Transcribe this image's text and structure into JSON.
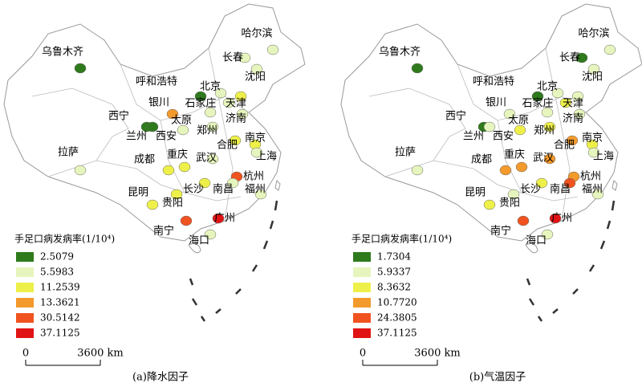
{
  "panels": [
    {
      "caption": "(a)降水因子",
      "legend": {
        "title": "手足口病发病率(1/10⁴)",
        "items": [
          {
            "label": "2.5079",
            "color": "#2f7a1c"
          },
          {
            "label": "5.5983",
            "color": "#e6f5bd"
          },
          {
            "label": "11.2539",
            "color": "#eef04a"
          },
          {
            "label": "13.3621",
            "color": "#f39a2c"
          },
          {
            "label": "30.5142",
            "color": "#f0531f"
          },
          {
            "label": "37.1125",
            "color": "#e01414"
          }
        ]
      },
      "scale": [
        "0",
        "3600 km"
      ],
      "cities": [
        "乌鲁木齐",
        "哈尔滨",
        "长春",
        "沈阳",
        "呼和浩特",
        "北京",
        "银川",
        "石家庄",
        "天津",
        "太原",
        "济南",
        "西宁",
        "西安",
        "郑州",
        "兰州",
        "合肥",
        "南京",
        "拉萨",
        "成都",
        "重庆",
        "武汉",
        "上海",
        "杭州",
        "长沙",
        "南昌",
        "福州",
        "昆明",
        "贵阳",
        "广州",
        "南宁",
        "海口"
      ]
    },
    {
      "caption": "(b)气温因子",
      "legend": {
        "title": "手足口病发病率(1/10⁴)",
        "items": [
          {
            "label": "1.7304",
            "color": "#2f7a1c"
          },
          {
            "label": "5.9337",
            "color": "#e6f5bd"
          },
          {
            "label": "8.3632",
            "color": "#eef04a"
          },
          {
            "label": "10.7720",
            "color": "#f39a2c"
          },
          {
            "label": "24.3805",
            "color": "#f0531f"
          },
          {
            "label": "37.1125",
            "color": "#e01414"
          }
        ]
      },
      "scale": [
        "0",
        "3600 km"
      ],
      "cities": [
        "乌鲁木齐",
        "哈尔滨",
        "长春",
        "沈阳",
        "呼和浩特",
        "北京",
        "银川",
        "石家庄",
        "天津",
        "太原",
        "济南",
        "西宁",
        "西安",
        "郑州",
        "兰州",
        "合肥",
        "南京",
        "拉萨",
        "成都",
        "重庆",
        "武汉",
        "上海",
        "杭州",
        "长沙",
        "南昌",
        "福州",
        "昆明",
        "贵阳",
        "广州",
        "南宁",
        "海口"
      ]
    }
  ]
}
